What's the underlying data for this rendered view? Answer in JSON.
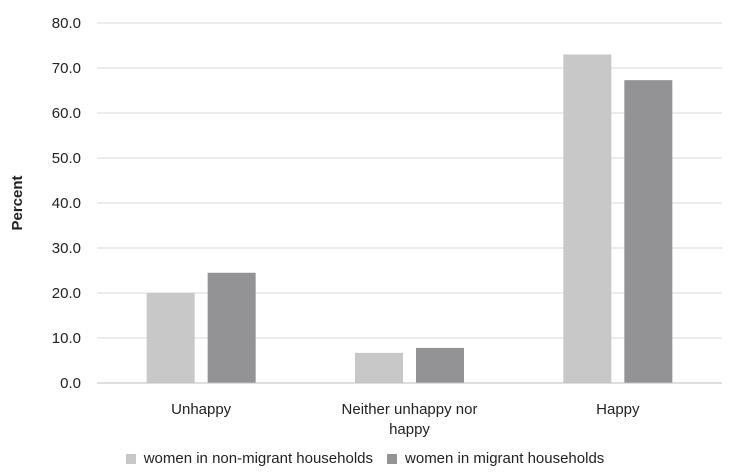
{
  "chart_data": {
    "type": "bar",
    "title": "",
    "xlabel": "",
    "ylabel": "Percent",
    "ylim": [
      0,
      80
    ],
    "yticks": [
      "0.0",
      "10.0",
      "20.0",
      "30.0",
      "40.0",
      "50.0",
      "60.0",
      "70.0",
      "80.0"
    ],
    "categories": [
      "Unhappy",
      "Neither unhappy nor happy",
      "Happy"
    ],
    "category_lines": [
      [
        "Unhappy"
      ],
      [
        "Neither unhappy nor",
        "happy"
      ],
      [
        "Happy"
      ]
    ],
    "series": [
      {
        "name": "women in non-migrant households",
        "values": [
          20.0,
          6.7,
          73.0
        ],
        "color": "#c8c8c8"
      },
      {
        "name": "women in migrant households",
        "values": [
          24.5,
          7.8,
          67.3
        ],
        "color": "#939396"
      }
    ],
    "grid": true,
    "legend_position": "bottom"
  }
}
